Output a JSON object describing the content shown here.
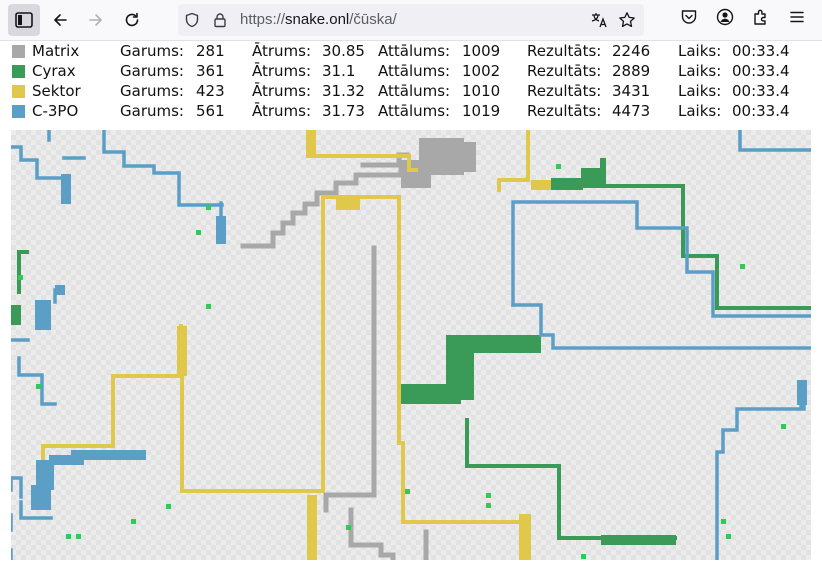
{
  "browser": {
    "url_scheme": "https://",
    "url_host": "snake.onl",
    "url_path": "/čūska/"
  },
  "game": {
    "labels": {
      "length": "Garums:",
      "speed": "Ātrums:",
      "distance": "Attālums:",
      "score": "Rezultāts:",
      "time": "Laiks:"
    },
    "players": [
      {
        "name": "Matrix",
        "color": "#a8a8a8",
        "length": "281",
        "speed": "30.85",
        "distance": "1009",
        "score": "2246",
        "time": "00:33.4"
      },
      {
        "name": "Cyrax",
        "color": "#3a9a58",
        "length": "361",
        "speed": "31.1",
        "distance": "1002",
        "score": "2889",
        "time": "00:33.4"
      },
      {
        "name": "Sektor",
        "color": "#e0c84a",
        "length": "423",
        "speed": "31.32",
        "distance": "1010",
        "score": "3431",
        "time": "00:33.4"
      },
      {
        "name": "C-3PO",
        "color": "#5b9ec6",
        "length": "561",
        "speed": "31.73",
        "distance": "1019",
        "score": "4473",
        "time": "00:33.4"
      }
    ],
    "food_color": "#2ecc57"
  }
}
